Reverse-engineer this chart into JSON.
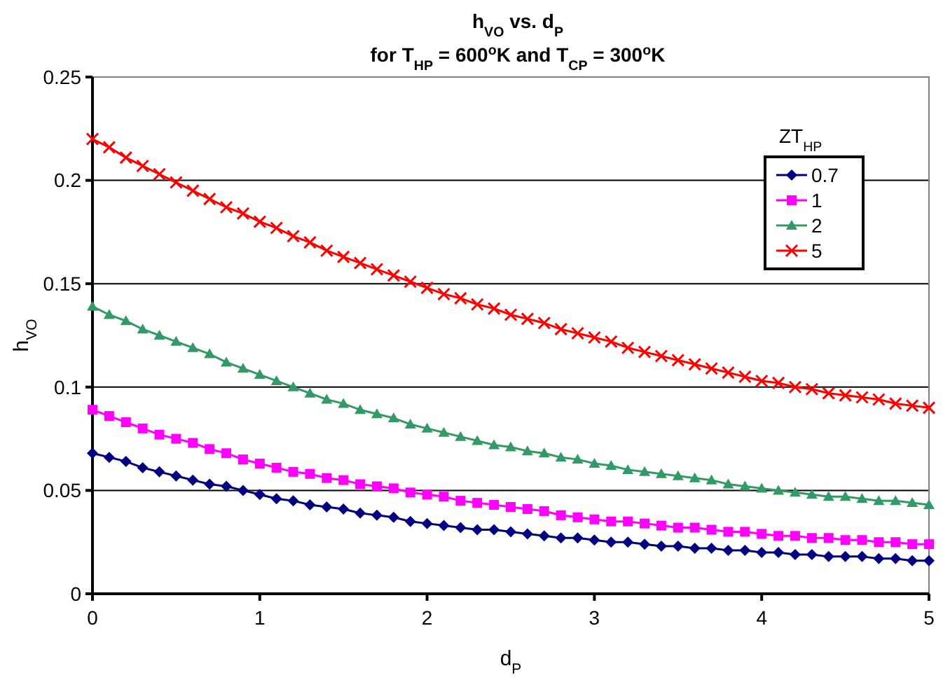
{
  "chart_data": {
    "type": "line",
    "title": "h$_{VO}$ vs. d$_{P}$",
    "subtitle": "for T$_{HP}$ = 600$^{o}$K and T$_{CP}$ = 300$^{o}$K",
    "xlabel": "d$_{P}$",
    "ylabel": "h$_{VO}$",
    "legend_title": "ZT$_{HP}$",
    "legend": "top right",
    "grid": "y",
    "xlim": [
      0,
      5
    ],
    "xticks": [
      0,
      1,
      2,
      3,
      4,
      5
    ],
    "ylim": [
      0,
      0.25
    ],
    "yticks": [
      0,
      0.05,
      0.1,
      0.15,
      0.2,
      0.25
    ],
    "x": [
      0,
      0.1,
      0.2,
      0.3,
      0.4,
      0.5,
      0.6,
      0.7,
      0.8,
      0.9,
      1,
      1.1,
      1.2,
      1.3,
      1.4,
      1.5,
      1.6,
      1.7,
      1.8,
      1.9,
      2,
      2.1,
      2.2,
      2.3,
      2.4,
      2.5,
      2.6,
      2.7,
      2.8,
      2.9,
      3,
      3.1,
      3.2,
      3.3,
      3.4,
      3.5,
      3.6,
      3.7,
      3.8,
      3.9,
      4,
      4.1,
      4.2,
      4.3,
      4.4,
      4.5,
      4.6,
      4.7,
      4.8,
      4.9,
      5
    ],
    "series": [
      {
        "name": "0.7",
        "color": "#000080",
        "marker": "diamond",
        "values": [
          0.068,
          0.066,
          0.064,
          0.061,
          0.059,
          0.057,
          0.055,
          0.053,
          0.052,
          0.05,
          0.048,
          0.046,
          0.045,
          0.043,
          0.042,
          0.041,
          0.039,
          0.038,
          0.037,
          0.035,
          0.034,
          0.033,
          0.032,
          0.031,
          0.031,
          0.03,
          0.029,
          0.028,
          0.027,
          0.027,
          0.026,
          0.025,
          0.025,
          0.024,
          0.023,
          0.023,
          0.022,
          0.022,
          0.021,
          0.021,
          0.02,
          0.02,
          0.019,
          0.019,
          0.018,
          0.018,
          0.018,
          0.017,
          0.017,
          0.016,
          0.016
        ]
      },
      {
        "name": "1",
        "color": "#ff00ff",
        "marker": "square",
        "values": [
          0.089,
          0.086,
          0.083,
          0.08,
          0.077,
          0.075,
          0.073,
          0.07,
          0.068,
          0.065,
          0.063,
          0.061,
          0.059,
          0.058,
          0.056,
          0.055,
          0.053,
          0.052,
          0.051,
          0.049,
          0.048,
          0.047,
          0.045,
          0.044,
          0.043,
          0.042,
          0.041,
          0.04,
          0.038,
          0.037,
          0.036,
          0.035,
          0.035,
          0.034,
          0.033,
          0.032,
          0.032,
          0.031,
          0.03,
          0.03,
          0.029,
          0.028,
          0.028,
          0.027,
          0.027,
          0.026,
          0.026,
          0.025,
          0.025,
          0.024,
          0.024
        ]
      },
      {
        "name": "2",
        "color": "#339966",
        "marker": "triangle",
        "values": [
          0.139,
          0.135,
          0.132,
          0.128,
          0.125,
          0.122,
          0.119,
          0.116,
          0.112,
          0.109,
          0.106,
          0.103,
          0.1,
          0.097,
          0.094,
          0.092,
          0.089,
          0.087,
          0.085,
          0.082,
          0.08,
          0.078,
          0.076,
          0.074,
          0.072,
          0.071,
          0.069,
          0.068,
          0.066,
          0.065,
          0.063,
          0.062,
          0.06,
          0.059,
          0.058,
          0.057,
          0.056,
          0.055,
          0.053,
          0.052,
          0.051,
          0.05,
          0.049,
          0.048,
          0.047,
          0.047,
          0.046,
          0.045,
          0.045,
          0.044,
          0.043
        ]
      },
      {
        "name": "5",
        "color": "#ff0000",
        "marker": "cross",
        "values": [
          0.22,
          0.216,
          0.211,
          0.207,
          0.203,
          0.199,
          0.195,
          0.191,
          0.187,
          0.184,
          0.18,
          0.177,
          0.173,
          0.17,
          0.166,
          0.163,
          0.16,
          0.157,
          0.154,
          0.151,
          0.148,
          0.145,
          0.143,
          0.14,
          0.138,
          0.135,
          0.133,
          0.131,
          0.128,
          0.126,
          0.124,
          0.122,
          0.119,
          0.117,
          0.115,
          0.113,
          0.111,
          0.109,
          0.107,
          0.105,
          0.103,
          0.102,
          0.1,
          0.099,
          0.097,
          0.096,
          0.095,
          0.094,
          0.092,
          0.091,
          0.09
        ]
      }
    ]
  }
}
